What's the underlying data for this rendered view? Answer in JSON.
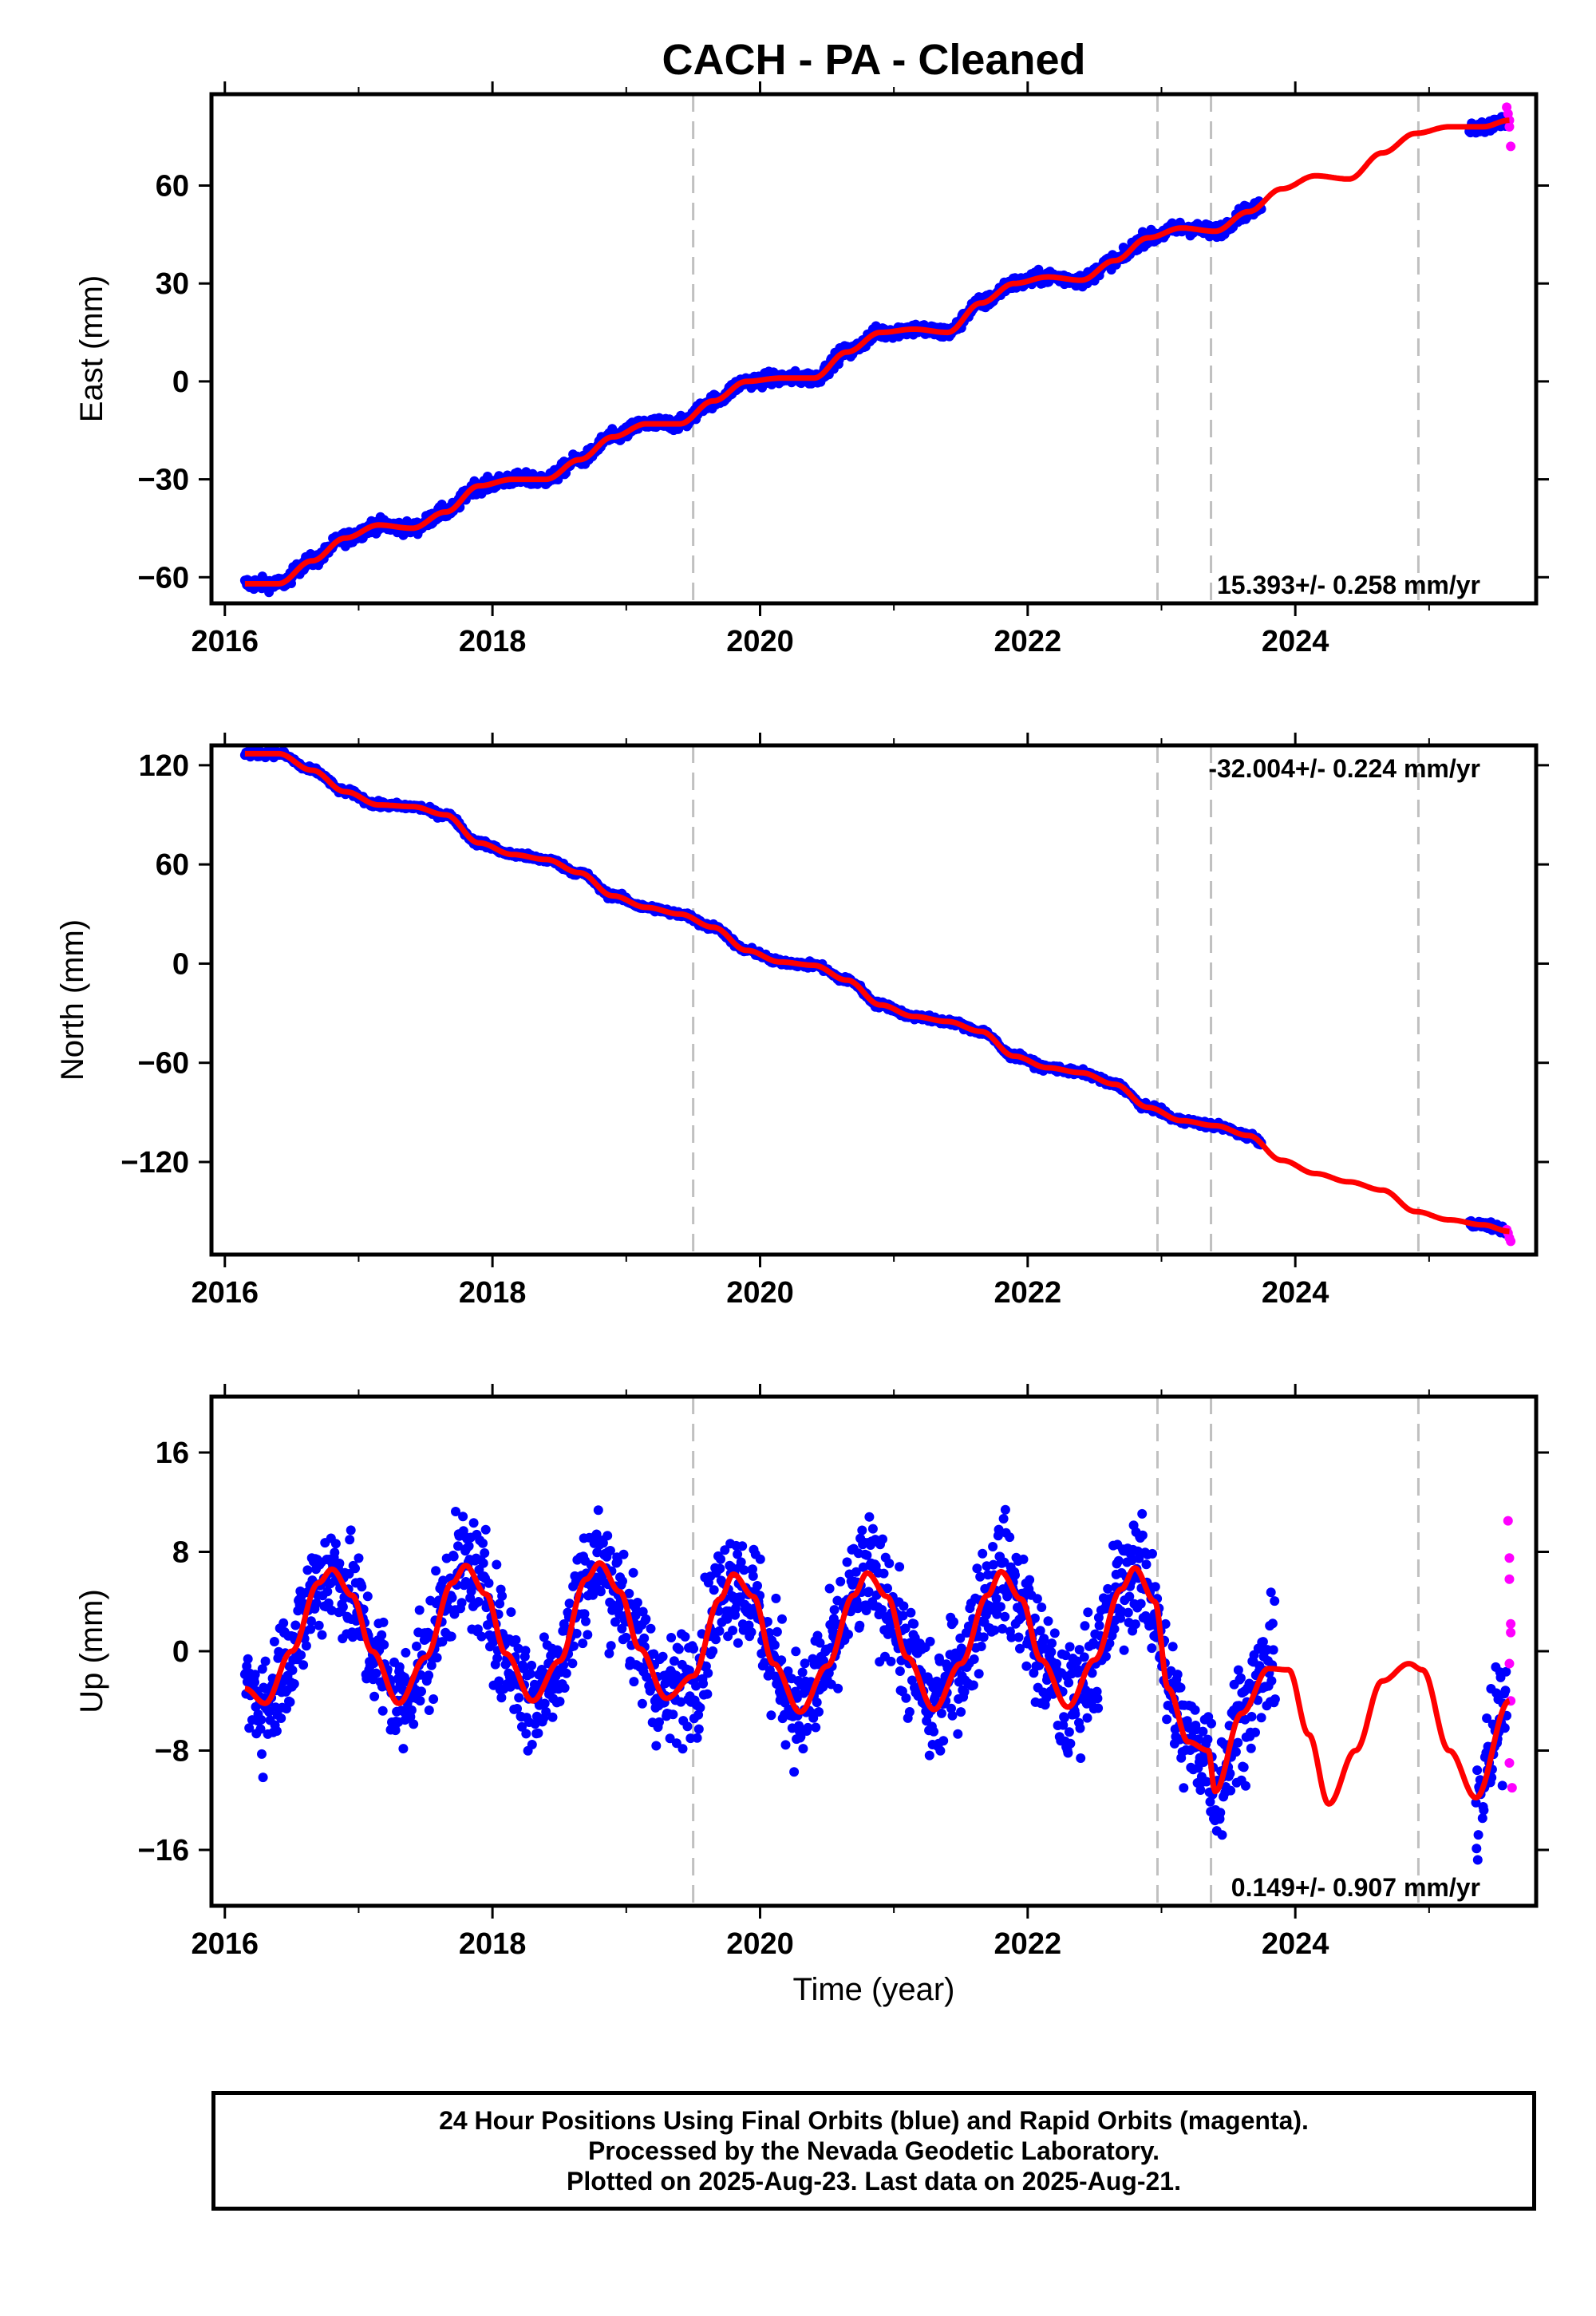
{
  "title": "CACH  - PA - Cleaned",
  "footer": {
    "line1": "24 Hour Positions Using Final Orbits (blue) and Rapid Orbits (magenta).",
    "line2": "Processed by the Nevada Geodetic Laboratory.",
    "line3": "Plotted on 2025-Aug-23. Last data on 2025-Aug-21."
  },
  "colors": {
    "final": "#0000ff",
    "rapid": "#ff00ff",
    "model": "#ff0000",
    "event_line": "#c0c0c0"
  },
  "chart_data": [
    {
      "type": "scatter",
      "panel": "east",
      "ylabel": "East (mm)",
      "xlabel": "",
      "xlim": [
        2015.9,
        2025.8
      ],
      "ylim": [
        -68,
        88
      ],
      "xticks": [
        2016,
        2018,
        2020,
        2022,
        2024
      ],
      "yticks": [
        -60,
        -30,
        0,
        30,
        60
      ],
      "tick_labels": {
        "x": [
          "2016",
          "2018",
          "2020",
          "2022",
          "2024"
        ],
        "y": [
          "−60",
          "−30",
          "0",
          "30",
          "60"
        ]
      },
      "rate": "15.393+/- 0.258 mm/yr",
      "event_lines": [
        2019.5,
        2022.97,
        2023.37,
        2024.92
      ],
      "model": {
        "x": [
          2016.15,
          2016.4,
          2016.65,
          2016.9,
          2017.15,
          2017.4,
          2017.65,
          2017.9,
          2018.15,
          2018.4,
          2018.65,
          2018.9,
          2019.15,
          2019.4,
          2019.65,
          2019.9,
          2020.15,
          2020.4,
          2020.65,
          2020.9,
          2021.15,
          2021.4,
          2021.65,
          2021.9,
          2022.15,
          2022.4,
          2022.65,
          2022.9,
          2023.15,
          2023.4,
          2023.65,
          2023.9,
          2024.15,
          2024.4,
          2024.65,
          2024.9,
          2025.15,
          2025.4,
          2025.6
        ],
        "y": [
          -62,
          -62,
          -55,
          -48,
          -44,
          -45,
          -40,
          -32,
          -30,
          -30,
          -24,
          -17,
          -13,
          -13,
          -6,
          0,
          1,
          1,
          9,
          15,
          16,
          15,
          24,
          30,
          32,
          31,
          37,
          44,
          47,
          46,
          52,
          59,
          63,
          62,
          70,
          76,
          78,
          78,
          80
        ]
      },
      "final_segments": [
        [
          2016.15,
          2023.75
        ],
        [
          2025.3,
          2025.58
        ]
      ],
      "final_scatter_mm": 1.7,
      "rapid": {
        "x": [
          2025.58,
          2025.59,
          2025.6,
          2025.6,
          2025.61
        ],
        "y": [
          84,
          82,
          80,
          78,
          72
        ]
      }
    },
    {
      "type": "scatter",
      "panel": "north",
      "ylabel": "North (mm)",
      "xlabel": "",
      "xlim": [
        2015.9,
        2025.8
      ],
      "ylim": [
        -176,
        132
      ],
      "xticks": [
        2016,
        2018,
        2020,
        2022,
        2024
      ],
      "yticks": [
        -120,
        -60,
        0,
        60,
        120
      ],
      "tick_labels": {
        "x": [
          "2016",
          "2018",
          "2020",
          "2022",
          "2024"
        ],
        "y": [
          "−120",
          "−60",
          "0",
          "60",
          "120"
        ]
      },
      "rate": "-32.004+/- 0.224 mm/yr",
      "event_lines": [
        2019.5,
        2022.97,
        2023.37,
        2024.92
      ],
      "model": {
        "x": [
          2016.15,
          2016.4,
          2016.65,
          2016.9,
          2017.15,
          2017.4,
          2017.65,
          2017.9,
          2018.15,
          2018.4,
          2018.65,
          2018.9,
          2019.15,
          2019.4,
          2019.65,
          2019.9,
          2020.15,
          2020.4,
          2020.65,
          2020.9,
          2021.15,
          2021.4,
          2021.65,
          2021.9,
          2022.15,
          2022.4,
          2022.65,
          2022.9,
          2023.15,
          2023.4,
          2023.65,
          2023.9,
          2024.15,
          2024.4,
          2024.65,
          2024.9,
          2025.15,
          2025.4,
          2025.6
        ],
        "y": [
          127,
          127,
          117,
          104,
          96,
          95,
          90,
          73,
          66,
          63,
          55,
          41,
          34,
          30,
          22,
          8,
          1,
          -1,
          -10,
          -25,
          -32,
          -35,
          -41,
          -56,
          -63,
          -66,
          -73,
          -87,
          -95,
          -98,
          -104,
          -119,
          -127,
          -132,
          -137,
          -150,
          -155,
          -158,
          -162
        ]
      },
      "final_segments": [
        [
          2016.15,
          2023.75
        ],
        [
          2025.3,
          2025.58
        ]
      ],
      "final_scatter_mm": 1.6,
      "rapid": {
        "x": [
          2025.58,
          2025.59,
          2025.6,
          2025.61
        ],
        "y": [
          -161,
          -163,
          -166,
          -168
        ]
      }
    },
    {
      "type": "scatter",
      "panel": "up",
      "ylabel": "Up (mm)",
      "xlabel": "Time (year)",
      "xlim": [
        2015.9,
        2025.8
      ],
      "ylim": [
        -20.5,
        20.5
      ],
      "xticks": [
        2016,
        2018,
        2020,
        2022,
        2024
      ],
      "yticks": [
        -16,
        -8,
        0,
        8,
        16
      ],
      "tick_labels": {
        "x": [
          "2016",
          "2018",
          "2020",
          "2022",
          "2024"
        ],
        "y": [
          "−16",
          "−8",
          "0",
          "8",
          "16"
        ]
      },
      "rate": "0.149+/- 0.907 mm/yr",
      "event_lines": [
        2019.5,
        2022.97,
        2023.37,
        2024.92
      ],
      "model": {
        "x": [
          2016.15,
          2016.3,
          2016.5,
          2016.7,
          2016.8,
          2016.95,
          2017.1,
          2017.3,
          2017.5,
          2017.7,
          2017.8,
          2017.95,
          2018.1,
          2018.3,
          2018.5,
          2018.7,
          2018.8,
          2018.95,
          2019.1,
          2019.3,
          2019.5,
          2019.7,
          2019.8,
          2019.95,
          2020.1,
          2020.3,
          2020.5,
          2020.7,
          2020.8,
          2020.95,
          2021.1,
          2021.3,
          2021.5,
          2021.7,
          2021.8,
          2021.95,
          2022.1,
          2022.3,
          2022.5,
          2022.7,
          2022.8,
          2022.95,
          2023.05,
          2023.2,
          2023.35,
          2023.4,
          2023.6,
          2023.8,
          2023.95,
          2024.1,
          2024.25,
          2024.45,
          2024.65,
          2024.85,
          2024.95,
          2025.15,
          2025.35,
          2025.6
        ],
        "y": [
          -3,
          -4.2,
          0,
          5.5,
          6.6,
          4.5,
          0,
          -4.2,
          -0.5,
          5.5,
          6.9,
          4.6,
          -0.2,
          -4,
          -0.8,
          5.8,
          7.1,
          4.8,
          0.2,
          -3.8,
          -2,
          4.2,
          6.2,
          4.4,
          -1,
          -4.9,
          -1.2,
          4.5,
          6.3,
          4.4,
          -0.5,
          -4.7,
          -1,
          4.5,
          6.4,
          4.2,
          -0.7,
          -4.5,
          -0.7,
          5,
          6.7,
          4,
          -3,
          -7.3,
          -8,
          -11.3,
          -5,
          -1.4,
          -1.5,
          -6.7,
          -12.3,
          -8,
          -2.4,
          -1,
          -1.5,
          -8,
          -11.8,
          -4
        ]
      },
      "final_segments": [
        [
          2016.15,
          2023.85
        ],
        [
          2025.35,
          2025.58
        ]
      ],
      "final_scatter_mm": 3.8,
      "rapid": {
        "x": [
          2025.59,
          2025.6,
          2025.6,
          2025.61,
          2025.61,
          2025.6,
          2025.61,
          2025.6,
          2025.62
        ],
        "y": [
          10.5,
          7.5,
          5.8,
          2.2,
          1.5,
          -1,
          -4,
          -9,
          -11
        ]
      }
    }
  ]
}
